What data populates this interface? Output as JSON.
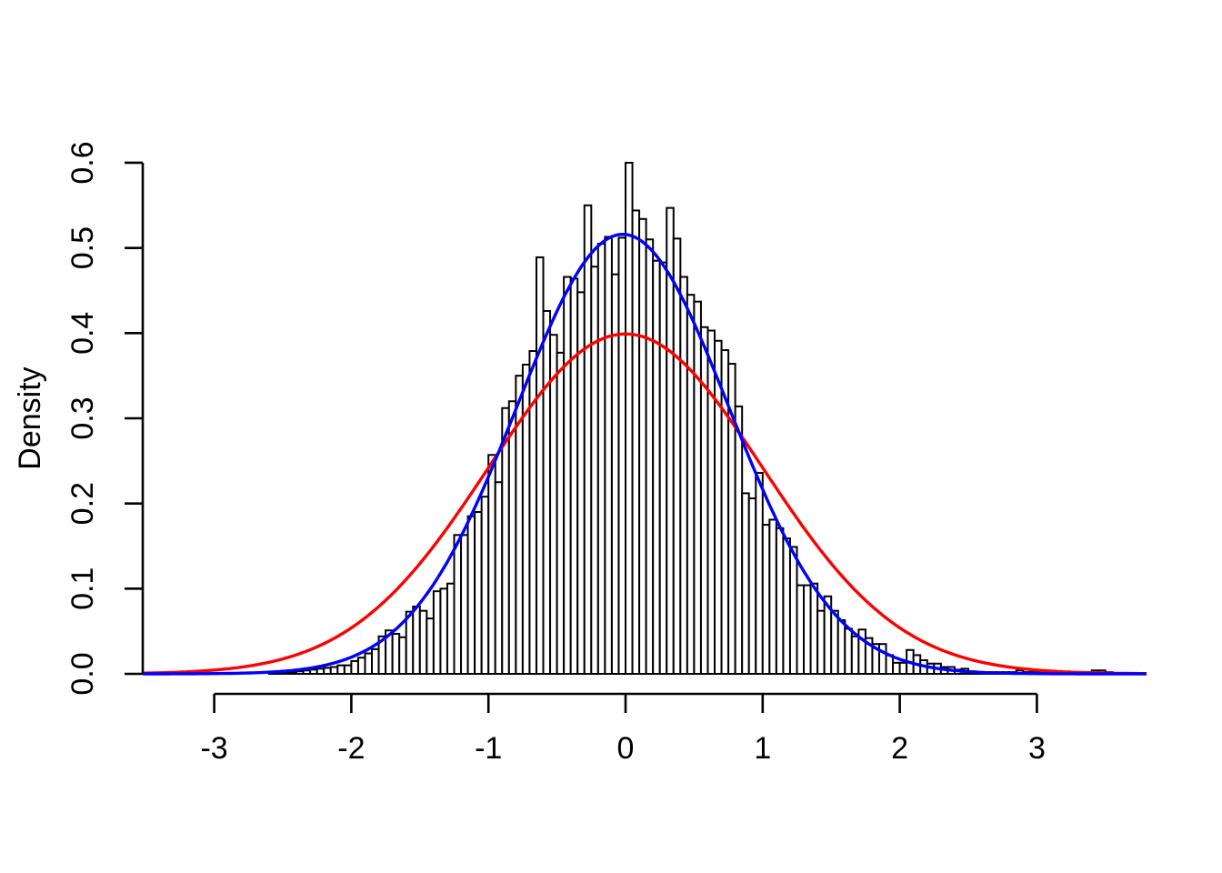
{
  "chart_data": {
    "type": "histogram",
    "title": "",
    "xlabel": "",
    "ylabel": "Density",
    "grid": false,
    "legend": "none",
    "x_axis": {
      "ticks": [
        -3,
        -2,
        -1,
        0,
        1,
        2,
        3
      ],
      "tick_labels": [
        "-3",
        "-2",
        "-1",
        "0",
        "1",
        "2",
        "3"
      ],
      "xlim": [
        -3.52,
        3.82
      ]
    },
    "y_axis": {
      "ticks": [
        0.0,
        0.1,
        0.2,
        0.3,
        0.4,
        0.5,
        0.6
      ],
      "tick_labels": [
        "0.0",
        "0.1",
        "0.2",
        "0.3",
        "0.4",
        "0.5",
        "0.6"
      ],
      "ylim": [
        0,
        0.62
      ],
      "title": "Density"
    },
    "histogram": {
      "bin_start": -2.6,
      "bin_width": 0.05,
      "bar_fill": "#ffffff",
      "bar_stroke": "#000000",
      "heights": [
        0.002,
        0.002,
        0.002,
        0.002,
        0.003,
        0.004,
        0.005,
        0.006,
        0.007,
        0.008,
        0.01,
        0.01,
        0.015,
        0.019,
        0.024,
        0.029,
        0.044,
        0.051,
        0.047,
        0.043,
        0.073,
        0.079,
        0.074,
        0.065,
        0.097,
        0.1,
        0.106,
        0.163,
        0.163,
        0.185,
        0.19,
        0.208,
        0.257,
        0.225,
        0.312,
        0.32,
        0.35,
        0.363,
        0.379,
        0.489,
        0.426,
        0.398,
        0.377,
        0.466,
        0.464,
        0.448,
        0.55,
        0.478,
        0.505,
        0.513,
        0.469,
        0.512,
        0.6,
        0.544,
        0.534,
        0.51,
        0.485,
        0.483,
        0.547,
        0.511,
        0.466,
        0.445,
        0.437,
        0.407,
        0.403,
        0.391,
        0.38,
        0.364,
        0.314,
        0.212,
        0.206,
        0.236,
        0.175,
        0.181,
        0.171,
        0.159,
        0.149,
        0.104,
        0.104,
        0.106,
        0.074,
        0.091,
        0.074,
        0.063,
        0.053,
        0.044,
        0.052,
        0.042,
        0.035,
        0.035,
        0.022,
        0.013,
        0.013,
        0.028,
        0.022,
        0.016,
        0.012,
        0.012,
        0.008,
        0.008,
        0.005,
        0.006,
        0.003,
        0.002,
        0.002,
        0.002,
        0.002,
        0.002,
        0.002,
        0.004,
        0.002,
        0.002,
        0.002,
        0,
        0.002,
        0,
        0.002,
        0,
        0,
        0.002,
        0.004,
        0.004,
        0.002
      ]
    },
    "curves": [
      {
        "name": "normal-reference-curve",
        "color": "#ff0000",
        "mean": 0,
        "sd": 1.0,
        "peak_density": 0.399,
        "x_range": [
          -3.52,
          3.81
        ]
      },
      {
        "name": "sample-density-curve",
        "color": "#0000ff",
        "mean": -0.02,
        "sd": 0.774,
        "peak_density": 0.516,
        "x_range": [
          -3.52,
          3.81
        ]
      }
    ]
  }
}
